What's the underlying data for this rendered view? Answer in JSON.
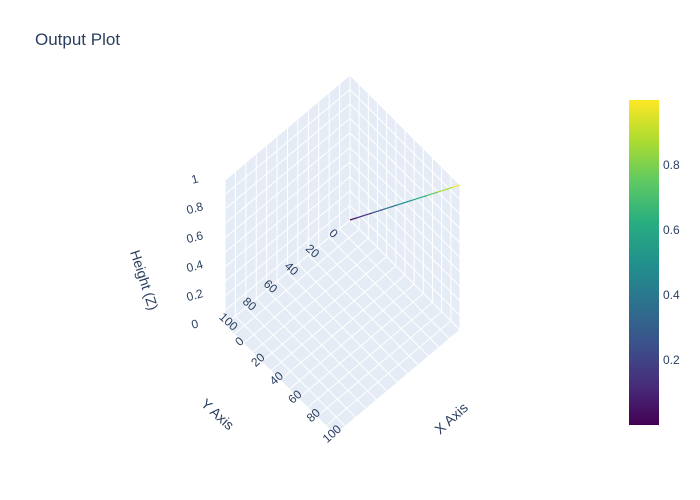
{
  "chart_data": {
    "type": "line3d",
    "title": "Output Plot",
    "x_axis": {
      "label": "X Axis",
      "ticks": [
        "0",
        "20",
        "40",
        "60",
        "80",
        "100"
      ],
      "range": [
        0,
        119
      ]
    },
    "y_axis": {
      "label": "Y Axis",
      "ticks": [
        "0",
        "20",
        "40",
        "60",
        "80",
        "100"
      ],
      "range": [
        0,
        119
      ]
    },
    "z_axis": {
      "label": "Height (Z)",
      "ticks": [
        "0",
        "0.2",
        "0.4",
        "0.6",
        "0.8",
        "1"
      ],
      "range": [
        0,
        1
      ]
    },
    "colorbar": {
      "colorscale": "Viridis",
      "ticks": [
        "0.2",
        "0.4",
        "0.6",
        "0.8"
      ],
      "range": [
        0,
        1
      ]
    },
    "series": [
      {
        "x": [
          0,
          119
        ],
        "y": [
          0,
          0
        ],
        "z": [
          0,
          1
        ],
        "color_range": [
          0,
          1
        ]
      }
    ],
    "grid": true
  }
}
